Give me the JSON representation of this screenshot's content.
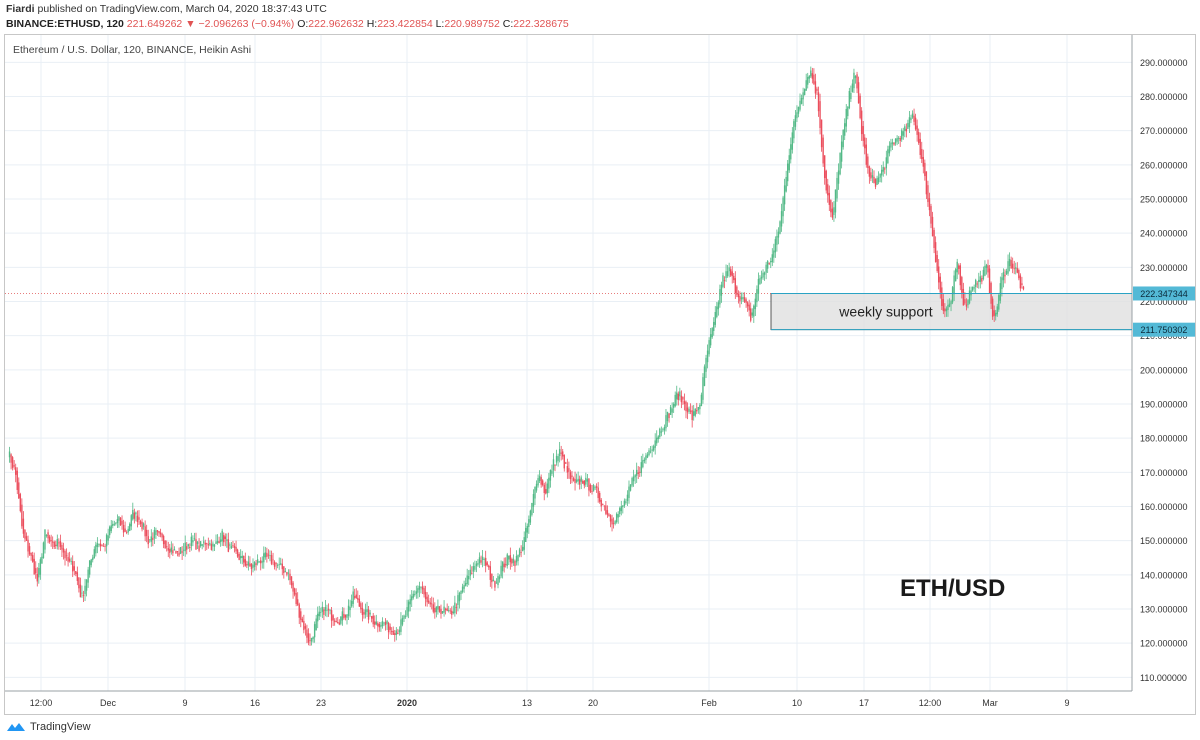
{
  "header": {
    "author": "Fiardi",
    "published_text": "published on TradingView.com, March 04, 2020 18:37:43 UTC",
    "symbol": "BINANCE:ETHUSD, 120",
    "last": "221.649262",
    "change": "−2.096263 (−0.94%)",
    "open_label": "O:",
    "open": "222.962632",
    "high_label": "H:",
    "high": "223.422854",
    "low_label": "L:",
    "low": "220.989752",
    "close_label": "C:",
    "close": "222.328675"
  },
  "footer": {
    "brand": "TradingView"
  },
  "colors": {
    "up": "#53b987",
    "down": "#eb4d5c",
    "grid": "#e9eff5",
    "zone": "#e0e0e0",
    "price_line": "#e05353",
    "label_bg": "#53b9d6"
  },
  "chart_data": {
    "type": "candlestick",
    "title": "Ethereum / U.S. Dollar, 120, BINANCE, Heikin Ashi",
    "watermark": "ETH/USD",
    "y_ticks": [
      "290.000000",
      "280.000000",
      "270.000000",
      "260.000000",
      "250.000000",
      "240.000000",
      "230.000000",
      "220.000000",
      "210.000000",
      "200.000000",
      "190.000000",
      "180.000000",
      "170.000000",
      "160.000000",
      "150.000000",
      "140.000000",
      "130.000000",
      "120.000000",
      "110.000000"
    ],
    "ylim": [
      106,
      298
    ],
    "x_ticks": [
      "12:00",
      "Dec",
      "9",
      "16",
      "23",
      "2020",
      "13",
      "20",
      "Feb",
      "10",
      "17",
      "12:00",
      "Mar",
      "9"
    ],
    "series_close": [
      176,
      170,
      152,
      146,
      138,
      152,
      148,
      150,
      144,
      142,
      133,
      142,
      150,
      148,
      154,
      156,
      152,
      158,
      156,
      150,
      152,
      150,
      148,
      146,
      148,
      150,
      148,
      150,
      148,
      152,
      148,
      146,
      144,
      142,
      144,
      145,
      144,
      142,
      141,
      133,
      126,
      120,
      127,
      130,
      128,
      127,
      129,
      134,
      130,
      128,
      126,
      126,
      124,
      124,
      128,
      134,
      137,
      131,
      129,
      130,
      128,
      132,
      137,
      141,
      145,
      143,
      137,
      142,
      145,
      144,
      149,
      158,
      170,
      164,
      172,
      176,
      170,
      166,
      168,
      166,
      164,
      160,
      156,
      158,
      162,
      168,
      172,
      176,
      180,
      184,
      188,
      193,
      190,
      186,
      190,
      205,
      214,
      226,
      229,
      223,
      220,
      215,
      226,
      230,
      234,
      244,
      262,
      274,
      282,
      288,
      280,
      256,
      243,
      262,
      276,
      288,
      270,
      256,
      255,
      259,
      266,
      268,
      270,
      275,
      264,
      250,
      234,
      217,
      218,
      232,
      218,
      225,
      226,
      230,
      214,
      226,
      232,
      229,
      222
    ],
    "candles_count": 660,
    "support_zone": {
      "label": "weekly support",
      "high": 222.347344,
      "low": 211.750302,
      "high_label": "222.347344",
      "low_label": "211.750302"
    },
    "current_price": 222.347344
  }
}
